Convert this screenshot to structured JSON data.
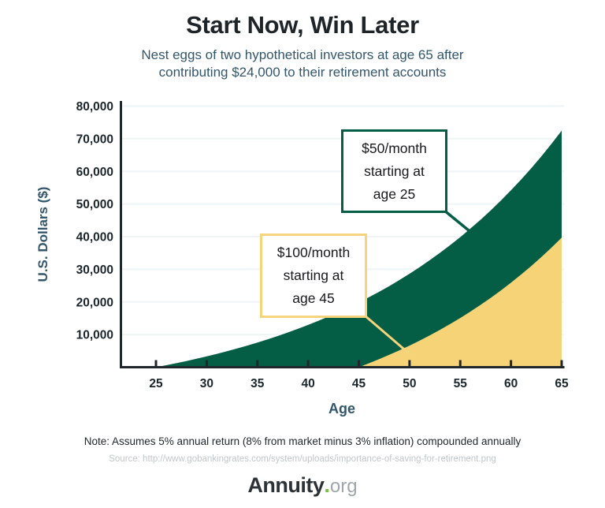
{
  "chart_data": {
    "type": "area",
    "title": "Start Now, Win Later",
    "subtitle_lines": [
      "Nest eggs of two hypothetical investors at age 65 after",
      "contributing $24,000 to their retirement accounts"
    ],
    "xlabel": "Age",
    "ylabel": "U.S. Dollars ($)",
    "xlim": [
      25,
      65
    ],
    "ylim": [
      0,
      80000
    ],
    "grid": "horizontal gridlines every 10,000, very light",
    "legend_position": "none (series labeled by callout boxes)",
    "x_ticks": [
      25,
      30,
      35,
      40,
      45,
      50,
      55,
      60,
      65
    ],
    "y_ticks": [
      {
        "value": 10000,
        "label": "10,000"
      },
      {
        "value": 20000,
        "label": "20,000"
      },
      {
        "value": 30000,
        "label": "30,000"
      },
      {
        "value": 40000,
        "label": "40,000"
      },
      {
        "value": 50000,
        "label": "50,000"
      },
      {
        "value": 60000,
        "label": "60,000"
      },
      {
        "value": 70000,
        "label": "70,000"
      },
      {
        "value": 80000,
        "label": "80,000"
      }
    ],
    "series": [
      {
        "id": "invest-early",
        "name": "$50/month starting at age 25",
        "color": "#045D45",
        "start_age": 25,
        "age_step": 1,
        "values": [
          0,
          600,
          1230,
          1892,
          2586,
          3315,
          4081,
          4885,
          5729,
          6616,
          7547,
          8524,
          9550,
          10628,
          11759,
          12947,
          14195,
          15504,
          16879,
          18323,
          19840,
          21432,
          23103,
          24858,
          26701,
          28636,
          30668,
          32801,
          35042,
          37394,
          39863,
          42456,
          45179,
          48038,
          51040,
          54192,
          57502,
          60977,
          64626,
          68457,
          72480
        ]
      },
      {
        "id": "invest-late",
        "name": "$100/month starting at age 45",
        "color": "#F5D376",
        "start_age": 45,
        "age_step": 1,
        "values": [
          0,
          1200,
          2460,
          3783,
          5172,
          6631,
          8162,
          9770,
          11459,
          13232,
          15093,
          17048,
          19101,
          21256,
          23518,
          25894,
          28389,
          31008,
          33759,
          36647,
          39679
        ]
      }
    ],
    "annotations": [
      {
        "id": "green",
        "lines": [
          "$50/month",
          "starting at",
          "age 25"
        ],
        "border_color": "#045D45"
      },
      {
        "id": "yellow",
        "lines": [
          "$100/month",
          "starting at",
          "age 45"
        ],
        "border_color": "#F6D47E"
      }
    ]
  },
  "footer": {
    "note": "Note: Assumes 5% annual return (8% from market minus 3% inflation) compounded annually",
    "source": "Source: http://www.gobankingrates.com/system/uploads/importance-of-saving-for-retirement.png",
    "logo": {
      "brand": "Annuity",
      "dot": ".",
      "tld": "org"
    }
  },
  "colors": {
    "green": "#045D45",
    "yellow": "#F5D376",
    "yellow_border": "#F6D47E",
    "axis": "#20262B",
    "tick_label": "#1B262C",
    "teal": "#33566B",
    "gridline": "#EFF4F7",
    "title": "#1F2428",
    "box_text": "#17191C",
    "note": "#23282C",
    "source": "#C0C6CA",
    "logo_dark": "#2D3237",
    "logo_green": "#77C043",
    "logo_gray": "#9FA6AB"
  }
}
